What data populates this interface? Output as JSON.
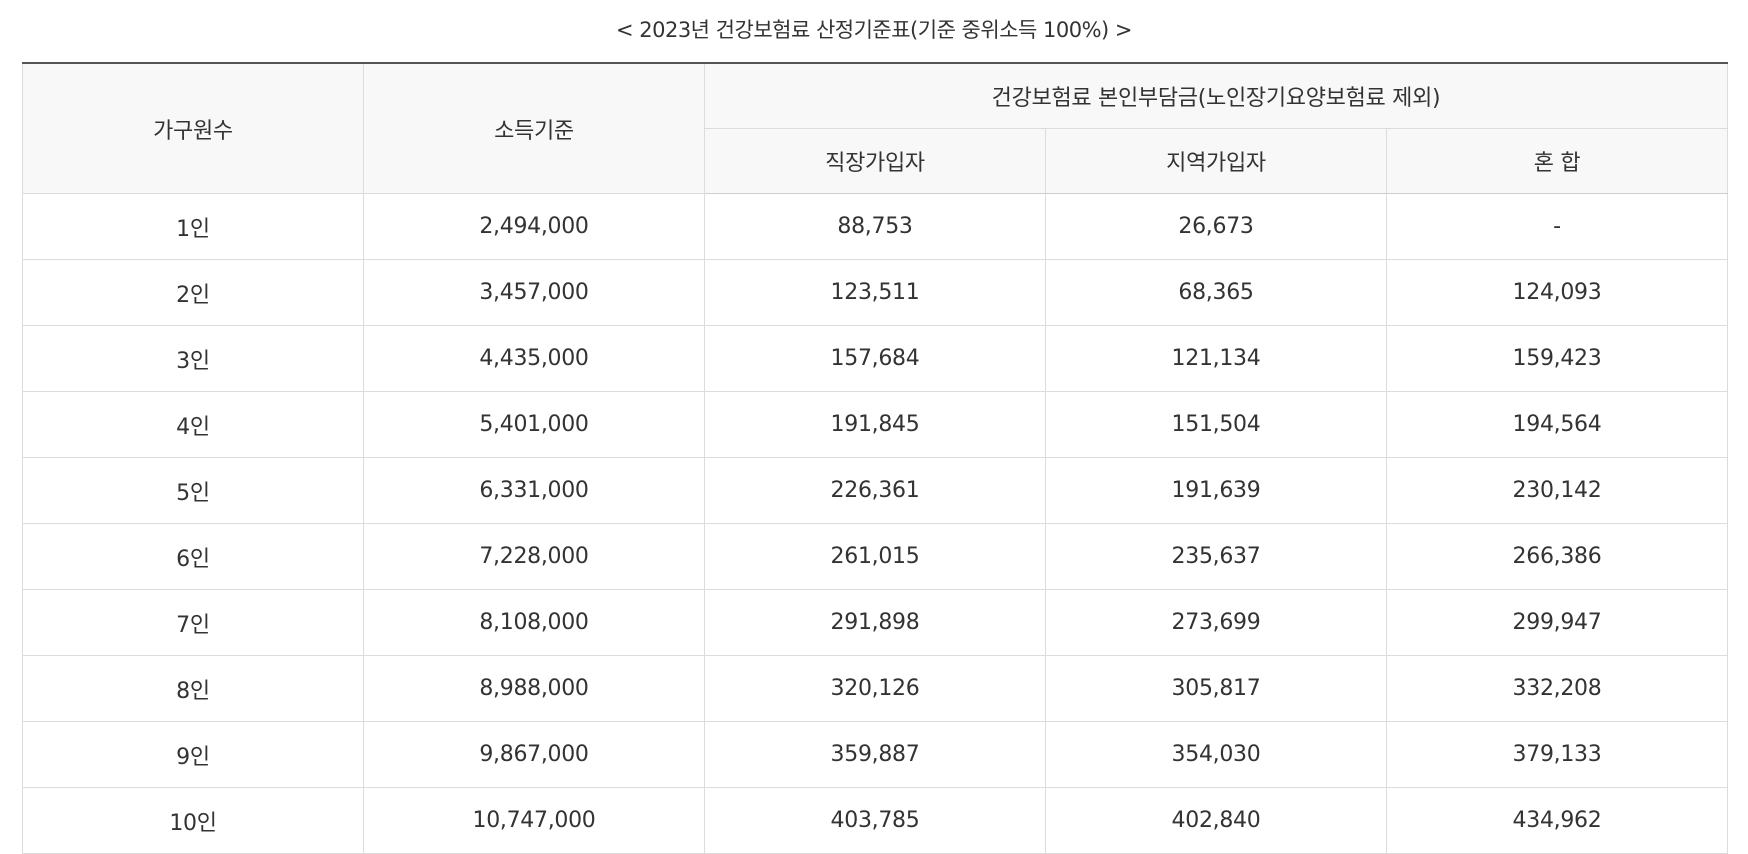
{
  "caption": "< 2023년 건강보험료 산정기준표(기준 중위소득 100%) >",
  "table": {
    "headers": {
      "household": "가구원수",
      "income": "소득기준",
      "premium_group": "건강보험료 본인부담금(노인장기요양보험료 제외)",
      "workplace": "직장가입자",
      "regional": "지역가입자",
      "mixed": "혼 합"
    },
    "rows": [
      {
        "household": "1인",
        "income": "2,494,000",
        "workplace": "88,753",
        "regional": "26,673",
        "mixed": "-"
      },
      {
        "household": "2인",
        "income": "3,457,000",
        "workplace": "123,511",
        "regional": "68,365",
        "mixed": "124,093"
      },
      {
        "household": "3인",
        "income": "4,435,000",
        "workplace": "157,684",
        "regional": "121,134",
        "mixed": "159,423"
      },
      {
        "household": "4인",
        "income": "5,401,000",
        "workplace": "191,845",
        "regional": "151,504",
        "mixed": "194,564"
      },
      {
        "household": "5인",
        "income": "6,331,000",
        "workplace": "226,361",
        "regional": "191,639",
        "mixed": "230,142"
      },
      {
        "household": "6인",
        "income": "7,228,000",
        "workplace": "261,015",
        "regional": "235,637",
        "mixed": "266,386"
      },
      {
        "household": "7인",
        "income": "8,108,000",
        "workplace": "291,898",
        "regional": "273,699",
        "mixed": "299,947"
      },
      {
        "household": "8인",
        "income": "8,988,000",
        "workplace": "320,126",
        "regional": "305,817",
        "mixed": "332,208"
      },
      {
        "household": "9인",
        "income": "9,867,000",
        "workplace": "359,887",
        "regional": "354,030",
        "mixed": "379,133"
      },
      {
        "household": "10인",
        "income": "10,747,000",
        "workplace": "403,785",
        "regional": "402,840",
        "mixed": "434,962"
      }
    ]
  }
}
